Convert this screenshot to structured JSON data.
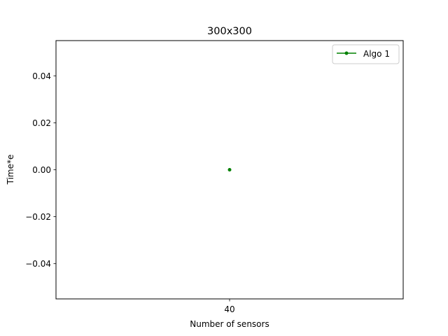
{
  "chart_data": {
    "type": "line",
    "title": "300x300",
    "xlabel": "Number of sensors",
    "ylabel": "Time*e",
    "xlim": [
      39.5,
      40.5
    ],
    "ylim": [
      -0.055,
      0.055
    ],
    "x_ticks": [
      40
    ],
    "x_tick_labels": [
      "40"
    ],
    "y_ticks": [
      0.04,
      0.02,
      0.0,
      -0.02,
      -0.04
    ],
    "y_tick_labels": [
      "0.04",
      "0.02",
      "0.00",
      "−0.02",
      "−0.04"
    ],
    "grid": false,
    "legend_position": "top-right",
    "series": [
      {
        "name": "Algo 1",
        "color": "#008000",
        "marker": "point",
        "x": [
          40
        ],
        "y": [
          0.0
        ]
      }
    ]
  }
}
